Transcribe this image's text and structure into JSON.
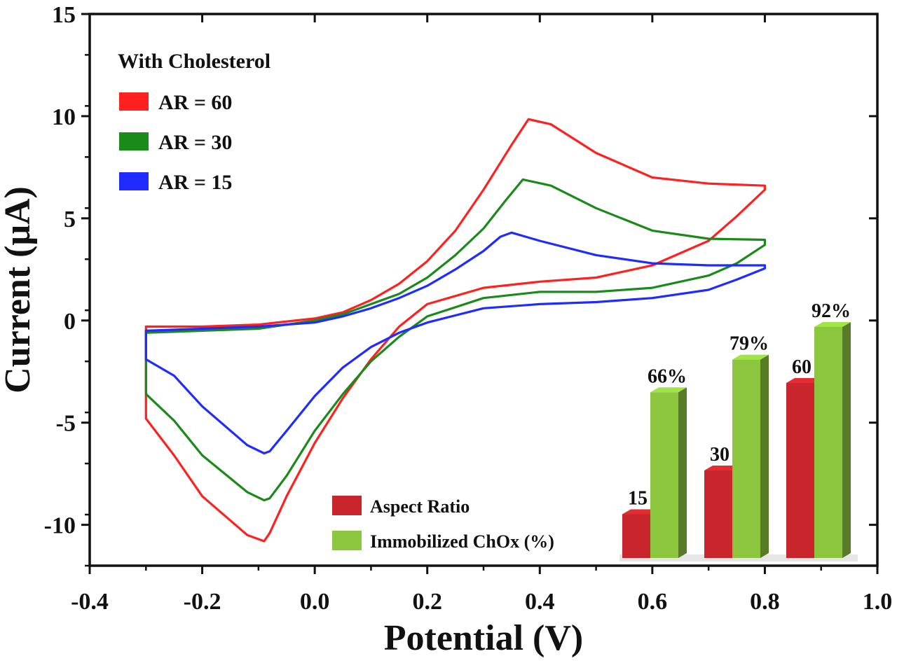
{
  "chart_data": {
    "type": "line",
    "title": "",
    "xlabel": "Potential (V)",
    "ylabel": "Current (μA)",
    "xlim": [
      -0.4,
      1.0
    ],
    "ylim": [
      -12,
      15
    ],
    "xticks": [
      "-0.4",
      "-0.2",
      "0.0",
      "0.2",
      "0.4",
      "0.6",
      "0.8",
      "1.0"
    ],
    "yticks": [
      "-10",
      "-5",
      "0",
      "5",
      "10",
      "15"
    ],
    "legend_title": "With Cholesterol",
    "legend_position": "top-left",
    "series": [
      {
        "name": "AR = 60",
        "color": "#ff2020",
        "points": [
          [
            -0.3,
            -0.3
          ],
          [
            -0.2,
            -0.3
          ],
          [
            -0.1,
            -0.2
          ],
          [
            0.0,
            0.1
          ],
          [
            0.05,
            0.4
          ],
          [
            0.1,
            1.0
          ],
          [
            0.15,
            1.8
          ],
          [
            0.2,
            2.9
          ],
          [
            0.25,
            4.4
          ],
          [
            0.3,
            6.4
          ],
          [
            0.35,
            8.6
          ],
          [
            0.38,
            9.85
          ],
          [
            0.42,
            9.6
          ],
          [
            0.5,
            8.2
          ],
          [
            0.6,
            7.0
          ],
          [
            0.7,
            6.7
          ],
          [
            0.8,
            6.6
          ],
          [
            0.8,
            6.4
          ],
          [
            0.75,
            5.1
          ],
          [
            0.7,
            3.9
          ],
          [
            0.6,
            2.7
          ],
          [
            0.5,
            2.1
          ],
          [
            0.4,
            1.9
          ],
          [
            0.3,
            1.6
          ],
          [
            0.2,
            0.8
          ],
          [
            0.15,
            -0.3
          ],
          [
            0.1,
            -1.9
          ],
          [
            0.05,
            -3.8
          ],
          [
            0.0,
            -6.0
          ],
          [
            -0.05,
            -8.6
          ],
          [
            -0.08,
            -10.4
          ],
          [
            -0.09,
            -10.8
          ],
          [
            -0.12,
            -10.5
          ],
          [
            -0.2,
            -8.6
          ],
          [
            -0.25,
            -6.6
          ],
          [
            -0.3,
            -4.8
          ]
        ]
      },
      {
        "name": "AR = 30",
        "color": "#1a8a1a",
        "points": [
          [
            -0.3,
            -0.6
          ],
          [
            -0.2,
            -0.5
          ],
          [
            -0.1,
            -0.4
          ],
          [
            0.0,
            0.0
          ],
          [
            0.05,
            0.3
          ],
          [
            0.1,
            0.8
          ],
          [
            0.15,
            1.3
          ],
          [
            0.2,
            2.1
          ],
          [
            0.25,
            3.2
          ],
          [
            0.3,
            4.5
          ],
          [
            0.34,
            5.9
          ],
          [
            0.37,
            6.9
          ],
          [
            0.42,
            6.6
          ],
          [
            0.5,
            5.5
          ],
          [
            0.6,
            4.4
          ],
          [
            0.7,
            4.0
          ],
          [
            0.8,
            3.95
          ],
          [
            0.8,
            3.7
          ],
          [
            0.75,
            2.8
          ],
          [
            0.7,
            2.2
          ],
          [
            0.6,
            1.6
          ],
          [
            0.5,
            1.4
          ],
          [
            0.4,
            1.4
          ],
          [
            0.3,
            1.1
          ],
          [
            0.2,
            0.2
          ],
          [
            0.15,
            -0.8
          ],
          [
            0.1,
            -2.0
          ],
          [
            0.05,
            -3.6
          ],
          [
            0.0,
            -5.4
          ],
          [
            -0.05,
            -7.6
          ],
          [
            -0.08,
            -8.7
          ],
          [
            -0.09,
            -8.8
          ],
          [
            -0.12,
            -8.4
          ],
          [
            -0.2,
            -6.6
          ],
          [
            -0.25,
            -4.9
          ],
          [
            -0.3,
            -3.6
          ]
        ]
      },
      {
        "name": "AR = 15",
        "color": "#1f2bff",
        "points": [
          [
            -0.3,
            -0.5
          ],
          [
            -0.2,
            -0.4
          ],
          [
            -0.1,
            -0.3
          ],
          [
            0.0,
            -0.1
          ],
          [
            0.05,
            0.2
          ],
          [
            0.1,
            0.6
          ],
          [
            0.15,
            1.1
          ],
          [
            0.2,
            1.7
          ],
          [
            0.25,
            2.5
          ],
          [
            0.3,
            3.4
          ],
          [
            0.33,
            4.1
          ],
          [
            0.35,
            4.3
          ],
          [
            0.4,
            3.9
          ],
          [
            0.5,
            3.2
          ],
          [
            0.6,
            2.8
          ],
          [
            0.7,
            2.7
          ],
          [
            0.8,
            2.7
          ],
          [
            0.8,
            2.55
          ],
          [
            0.75,
            2.0
          ],
          [
            0.7,
            1.5
          ],
          [
            0.6,
            1.1
          ],
          [
            0.5,
            0.9
          ],
          [
            0.4,
            0.8
          ],
          [
            0.3,
            0.6
          ],
          [
            0.2,
            -0.1
          ],
          [
            0.15,
            -0.6
          ],
          [
            0.1,
            -1.3
          ],
          [
            0.05,
            -2.3
          ],
          [
            0.0,
            -3.7
          ],
          [
            -0.05,
            -5.4
          ],
          [
            -0.08,
            -6.4
          ],
          [
            -0.09,
            -6.5
          ],
          [
            -0.12,
            -6.1
          ],
          [
            -0.2,
            -4.2
          ],
          [
            -0.25,
            -2.7
          ],
          [
            -0.3,
            -1.9
          ]
        ]
      }
    ],
    "inset": {
      "type": "bar",
      "legend": [
        "Aspect Ratio",
        "Immobilized ChOx (%)"
      ],
      "colors": [
        "#c8262c",
        "#8cc63f"
      ],
      "groups": [
        {
          "aspect_ratio": 15,
          "aspect_label": "15",
          "chox": 66,
          "chox_label": "66%"
        },
        {
          "aspect_ratio": 30,
          "aspect_label": "30",
          "chox": 79,
          "chox_label": "79%"
        },
        {
          "aspect_ratio": 60,
          "aspect_label": "60",
          "chox": 92,
          "chox_label": "92%"
        }
      ]
    }
  }
}
